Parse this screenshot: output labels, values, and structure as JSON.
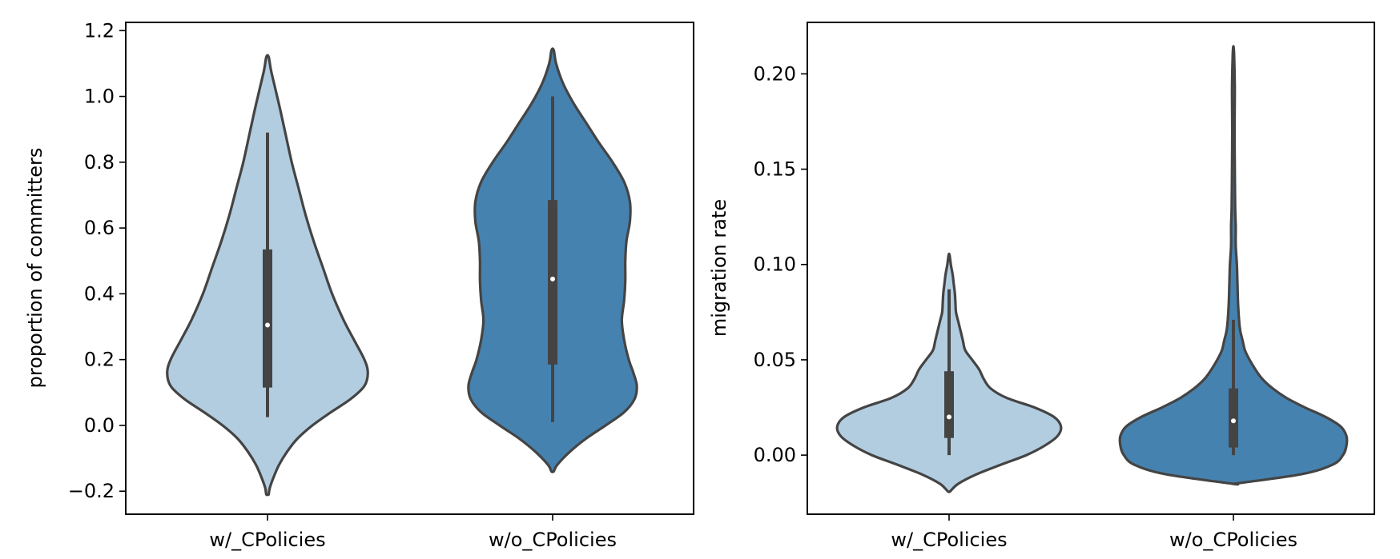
{
  "chart_data": [
    {
      "type": "violin",
      "title": "",
      "xlabel": "",
      "ylabel": "proportion of committers",
      "ylim": [
        -0.27,
        1.225
      ],
      "yticks": [
        -0.2,
        0.0,
        0.2,
        0.4,
        0.6,
        0.8,
        1.0,
        1.2
      ],
      "ytick_labels": [
        "−0.2",
        "0.0",
        "0.2",
        "0.4",
        "0.6",
        "0.8",
        "1.0",
        "1.2"
      ],
      "categories": [
        "w/_CPolicies",
        "w/o_CPolicies"
      ],
      "colors": [
        "#b3cde0",
        "#4682b0"
      ],
      "series": [
        {
          "name": "w/_CPolicies",
          "whisker_low": 0.025,
          "q1": 0.115,
          "median": 0.305,
          "q3": 0.535,
          "whisker_high": 0.89,
          "density": [
            [
              -0.21,
              0.01
            ],
            [
              -0.19,
              0.02
            ],
            [
              -0.16,
              0.05
            ],
            [
              -0.12,
              0.1
            ],
            [
              -0.08,
              0.17
            ],
            [
              -0.04,
              0.26
            ],
            [
              0.0,
              0.39
            ],
            [
              0.04,
              0.55
            ],
            [
              0.08,
              0.72
            ],
            [
              0.12,
              0.84
            ],
            [
              0.16,
              0.87
            ],
            [
              0.2,
              0.84
            ],
            [
              0.26,
              0.75
            ],
            [
              0.32,
              0.66
            ],
            [
              0.4,
              0.56
            ],
            [
              0.48,
              0.48
            ],
            [
              0.56,
              0.4
            ],
            [
              0.64,
              0.33
            ],
            [
              0.72,
              0.27
            ],
            [
              0.8,
              0.21
            ],
            [
              0.88,
              0.16
            ],
            [
              0.96,
              0.11
            ],
            [
              1.02,
              0.07
            ],
            [
              1.08,
              0.03
            ],
            [
              1.12,
              0.01
            ]
          ]
        },
        {
          "name": "w/o_CPolicies",
          "whisker_low": 0.01,
          "q1": 0.185,
          "median": 0.445,
          "q3": 0.685,
          "whisker_high": 1.0,
          "density": [
            [
              -0.14,
              0.01
            ],
            [
              -0.12,
              0.04
            ],
            [
              -0.08,
              0.15
            ],
            [
              -0.04,
              0.29
            ],
            [
              0.0,
              0.46
            ],
            [
              0.04,
              0.62
            ],
            [
              0.08,
              0.71
            ],
            [
              0.12,
              0.73
            ],
            [
              0.16,
              0.7
            ],
            [
              0.2,
              0.66
            ],
            [
              0.26,
              0.62
            ],
            [
              0.32,
              0.6
            ],
            [
              0.38,
              0.62
            ],
            [
              0.44,
              0.63
            ],
            [
              0.5,
              0.63
            ],
            [
              0.56,
              0.64
            ],
            [
              0.62,
              0.67
            ],
            [
              0.68,
              0.67
            ],
            [
              0.74,
              0.62
            ],
            [
              0.8,
              0.52
            ],
            [
              0.86,
              0.4
            ],
            [
              0.92,
              0.29
            ],
            [
              0.98,
              0.18
            ],
            [
              1.04,
              0.09
            ],
            [
              1.1,
              0.03
            ],
            [
              1.14,
              0.01
            ]
          ]
        }
      ]
    },
    {
      "type": "violin",
      "title": "",
      "xlabel": "",
      "ylabel": "migration rate",
      "ylim": [
        -0.031,
        0.227
      ],
      "yticks": [
        0.0,
        0.05,
        0.1,
        0.15,
        0.2
      ],
      "ytick_labels": [
        "0.00",
        "0.05",
        "0.10",
        "0.15",
        "0.20"
      ],
      "categories": [
        "w/_CPolicies",
        "w/o_CPolicies"
      ],
      "colors": [
        "#b3cde0",
        "#4682b0"
      ],
      "series": [
        {
          "name": "w/_CPolicies",
          "whisker_low": 0.0,
          "q1": 0.009,
          "median": 0.02,
          "q3": 0.044,
          "whisker_high": 0.087,
          "density": [
            [
              -0.019,
              0.01
            ],
            [
              -0.015,
              0.08
            ],
            [
              -0.01,
              0.24
            ],
            [
              -0.005,
              0.45
            ],
            [
              0.0,
              0.67
            ],
            [
              0.005,
              0.83
            ],
            [
              0.01,
              0.94
            ],
            [
              0.015,
              0.97
            ],
            [
              0.02,
              0.91
            ],
            [
              0.025,
              0.74
            ],
            [
              0.03,
              0.5
            ],
            [
              0.035,
              0.36
            ],
            [
              0.04,
              0.3
            ],
            [
              0.045,
              0.26
            ],
            [
              0.05,
              0.2
            ],
            [
              0.055,
              0.14
            ],
            [
              0.06,
              0.12
            ],
            [
              0.065,
              0.1
            ],
            [
              0.07,
              0.08
            ],
            [
              0.075,
              0.06
            ],
            [
              0.08,
              0.055
            ],
            [
              0.085,
              0.05
            ],
            [
              0.09,
              0.04
            ],
            [
              0.095,
              0.03
            ],
            [
              0.1,
              0.015
            ],
            [
              0.105,
              0.004
            ]
          ]
        },
        {
          "name": "w/o_CPolicies",
          "whisker_low": 0.0,
          "q1": 0.004,
          "median": 0.018,
          "q3": 0.035,
          "whisker_high": 0.071,
          "density": [
            [
              -0.015,
              0.01
            ],
            [
              -0.01,
              0.59
            ],
            [
              -0.005,
              0.86
            ],
            [
              0.0,
              0.95
            ],
            [
              0.005,
              0.98
            ],
            [
              0.01,
              0.98
            ],
            [
              0.015,
              0.93
            ],
            [
              0.02,
              0.8
            ],
            [
              0.025,
              0.62
            ],
            [
              0.03,
              0.46
            ],
            [
              0.035,
              0.34
            ],
            [
              0.04,
              0.25
            ],
            [
              0.045,
              0.19
            ],
            [
              0.05,
              0.14
            ],
            [
              0.055,
              0.1
            ],
            [
              0.06,
              0.08
            ],
            [
              0.065,
              0.06
            ],
            [
              0.07,
              0.05
            ],
            [
              0.08,
              0.04
            ],
            [
              0.09,
              0.035
            ],
            [
              0.1,
              0.03
            ],
            [
              0.11,
              0.02
            ],
            [
              0.12,
              0.02
            ],
            [
              0.13,
              0.015
            ],
            [
              0.15,
              0.012
            ],
            [
              0.17,
              0.01
            ],
            [
              0.19,
              0.012
            ],
            [
              0.2,
              0.01
            ],
            [
              0.21,
              0.006
            ],
            [
              0.214,
              0.002
            ]
          ]
        }
      ]
    }
  ]
}
